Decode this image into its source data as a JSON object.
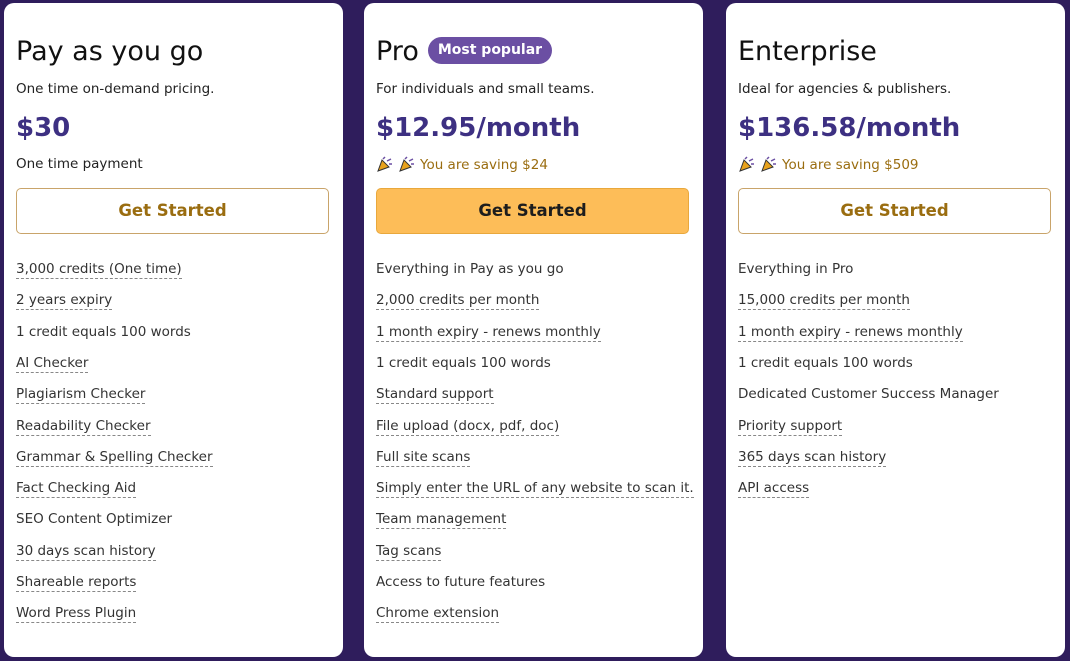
{
  "plans": [
    {
      "name": "Pay as you go",
      "description": "One time on-demand pricing.",
      "price": "$30",
      "note": "One time payment",
      "saving": false,
      "button": "Get Started",
      "highlight": false,
      "features": [
        {
          "text": "3,000 credits (One time)",
          "dotted": true
        },
        {
          "text": "2 years expiry",
          "dotted": true
        },
        {
          "text": "1 credit equals 100 words",
          "dotted": false
        },
        {
          "text": "AI Checker",
          "dotted": true
        },
        {
          "text": "Plagiarism Checker",
          "dotted": true
        },
        {
          "text": "Readability Checker",
          "dotted": true
        },
        {
          "text": "Grammar & Spelling Checker",
          "dotted": true
        },
        {
          "text": "Fact Checking Aid",
          "dotted": true
        },
        {
          "text": "SEO Content Optimizer",
          "dotted": false
        },
        {
          "text": "30 days scan history",
          "dotted": true
        },
        {
          "text": "Shareable reports",
          "dotted": true
        },
        {
          "text": "Word Press Plugin",
          "dotted": true
        }
      ]
    },
    {
      "name": "Pro",
      "badge": "Most popular",
      "description": "For individuals and small teams.",
      "price": "$12.95/month",
      "note": "You are saving $24",
      "saving": true,
      "button": "Get Started",
      "highlight": true,
      "features": [
        {
          "text": "Everything in Pay as you go",
          "dotted": false
        },
        {
          "text": "2,000 credits per month",
          "dotted": true
        },
        {
          "text": "1 month expiry - renews monthly",
          "dotted": true
        },
        {
          "text": "1 credit equals 100 words",
          "dotted": false
        },
        {
          "text": "Standard support",
          "dotted": true
        },
        {
          "text": "File upload (docx, pdf, doc)",
          "dotted": true
        },
        {
          "text": "Full site scans",
          "dotted": true
        },
        {
          "text": "Simply enter the URL of any website to scan it.",
          "dotted": true
        },
        {
          "text": "Team management",
          "dotted": true
        },
        {
          "text": "Tag scans",
          "dotted": true
        },
        {
          "text": "Access to future features",
          "dotted": false
        },
        {
          "text": "Chrome extension",
          "dotted": true
        }
      ]
    },
    {
      "name": "Enterprise",
      "description": "Ideal for agencies & publishers.",
      "price": "$136.58/month",
      "note": "You are saving $509",
      "saving": true,
      "button": "Get Started",
      "highlight": false,
      "features": [
        {
          "text": "Everything in Pro",
          "dotted": false
        },
        {
          "text": "15,000 credits per month",
          "dotted": true
        },
        {
          "text": "1 month expiry - renews monthly",
          "dotted": true
        },
        {
          "text": "1 credit equals 100 words",
          "dotted": false
        },
        {
          "text": "Dedicated Customer Success Manager",
          "dotted": false
        },
        {
          "text": "Priority support",
          "dotted": true
        },
        {
          "text": "365 days scan history",
          "dotted": true
        },
        {
          "text": "API access",
          "dotted": true
        }
      ]
    }
  ]
}
